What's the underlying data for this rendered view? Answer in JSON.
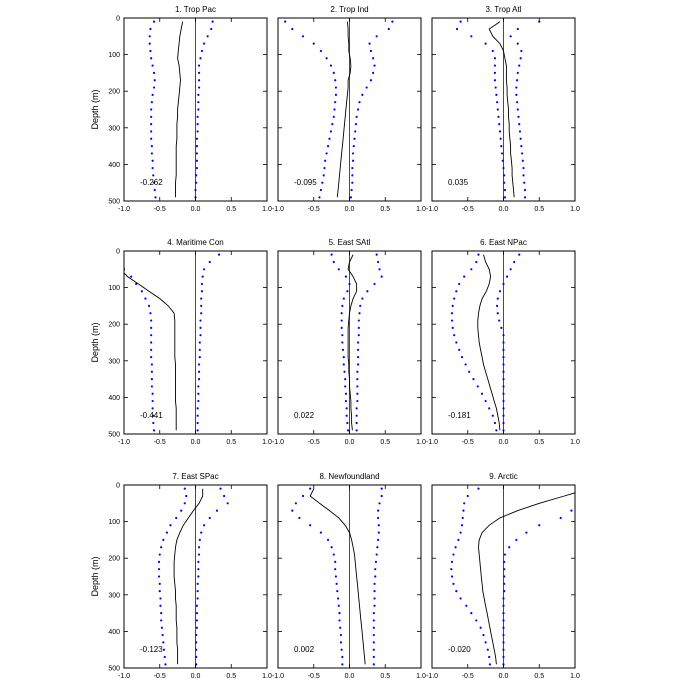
{
  "chart_data": {
    "type": "line",
    "ylabel": "Depth (m)",
    "xlim": [
      -1.0,
      1.0
    ],
    "ylim": [
      500,
      0
    ],
    "x_ticks": [
      "-1.0",
      "-0.5",
      "0.0",
      "0.5",
      "1.0"
    ],
    "y_ticks": [
      "0",
      "100",
      "200",
      "300",
      "400",
      "500"
    ],
    "depths": [
      10,
      30,
      50,
      70,
      90,
      110,
      130,
      150,
      170,
      190,
      210,
      230,
      250,
      270,
      290,
      310,
      330,
      350,
      370,
      390,
      410,
      430,
      450,
      470,
      490
    ],
    "reference_line": {
      "x": 0.0,
      "color": "#ff0000"
    },
    "colors": {
      "mean": "#000000",
      "bounds": "#0000ff"
    },
    "panels": [
      {
        "title": "1. Trop Pac",
        "value_label": "-0.262",
        "mean": [
          -0.18,
          -0.2,
          -0.22,
          -0.23,
          -0.24,
          -0.25,
          -0.23,
          -0.22,
          -0.21,
          -0.22,
          -0.23,
          -0.24,
          -0.25,
          -0.25,
          -0.26,
          -0.26,
          -0.26,
          -0.27,
          -0.27,
          -0.27,
          -0.27,
          -0.27,
          -0.28,
          -0.28,
          -0.28
        ],
        "lower": [
          -0.58,
          -0.63,
          -0.64,
          -0.64,
          -0.63,
          -0.62,
          -0.6,
          -0.58,
          -0.57,
          -0.58,
          -0.6,
          -0.61,
          -0.62,
          -0.62,
          -0.62,
          -0.62,
          -0.62,
          -0.61,
          -0.61,
          -0.6,
          -0.6,
          -0.59,
          -0.58,
          -0.57,
          -0.56
        ],
        "upper": [
          0.24,
          0.22,
          0.17,
          0.12,
          0.09,
          0.07,
          0.05,
          0.05,
          0.05,
          0.05,
          0.04,
          0.04,
          0.04,
          0.03,
          0.03,
          0.03,
          0.02,
          0.02,
          0.02,
          0.02,
          0.02,
          0.01,
          0.01,
          0.0,
          0.0
        ]
      },
      {
        "title": "2. Trop Ind",
        "value_label": "-0.095",
        "mean": [
          -0.03,
          -0.02,
          -0.02,
          -0.01,
          -0.01,
          0.01,
          0.02,
          0.01,
          -0.02,
          -0.02,
          -0.03,
          -0.04,
          -0.05,
          -0.06,
          -0.07,
          -0.08,
          -0.09,
          -0.1,
          -0.11,
          -0.12,
          -0.13,
          -0.14,
          -0.15,
          -0.16,
          -0.17
        ],
        "lower": [
          -0.9,
          -0.8,
          -0.65,
          -0.5,
          -0.4,
          -0.32,
          -0.26,
          -0.22,
          -0.2,
          -0.19,
          -0.19,
          -0.2,
          -0.21,
          -0.22,
          -0.24,
          -0.26,
          -0.28,
          -0.3,
          -0.32,
          -0.34,
          -0.35,
          -0.36,
          -0.38,
          -0.4,
          -0.42
        ],
        "upper": [
          0.6,
          0.55,
          0.38,
          0.28,
          0.3,
          0.33,
          0.35,
          0.33,
          0.3,
          0.24,
          0.18,
          0.14,
          0.12,
          0.1,
          0.09,
          0.08,
          0.07,
          0.06,
          0.05,
          0.05,
          0.04,
          0.04,
          0.04,
          0.03,
          0.02
        ]
      },
      {
        "title": "3. Trop Atl",
        "value_label": "0.035",
        "mean": [
          -0.05,
          -0.2,
          -0.15,
          -0.05,
          0.0,
          0.02,
          0.04,
          0.04,
          0.04,
          0.05,
          0.05,
          0.06,
          0.07,
          0.07,
          0.08,
          0.08,
          0.09,
          0.1,
          0.1,
          0.11,
          0.12,
          0.12,
          0.13,
          0.14,
          0.15
        ],
        "lower": [
          -0.6,
          -0.65,
          -0.45,
          -0.25,
          -0.15,
          -0.12,
          -0.12,
          -0.12,
          -0.12,
          -0.11,
          -0.1,
          -0.09,
          -0.08,
          -0.07,
          -0.06,
          -0.05,
          -0.04,
          -0.03,
          -0.02,
          -0.01,
          0.0,
          0.01,
          0.01,
          0.02,
          0.02
        ],
        "upper": [
          0.5,
          0.2,
          0.1,
          0.2,
          0.25,
          0.24,
          0.22,
          0.2,
          0.19,
          0.18,
          0.18,
          0.19,
          0.2,
          0.21,
          0.22,
          0.23,
          0.24,
          0.25,
          0.26,
          0.27,
          0.28,
          0.28,
          0.29,
          0.3,
          0.3
        ]
      },
      {
        "title": "4. Maritime Con",
        "value_label": "-0.441",
        "mean": [
          -1.2,
          -1.15,
          -1.05,
          -0.95,
          -0.8,
          -0.65,
          -0.5,
          -0.38,
          -0.3,
          -0.29,
          -0.29,
          -0.29,
          -0.29,
          -0.29,
          -0.29,
          -0.28,
          -0.28,
          -0.28,
          -0.28,
          -0.28,
          -0.28,
          -0.27,
          -0.27,
          -0.27,
          -0.27
        ],
        "lower": [
          -1.3,
          -1.2,
          -1.0,
          -0.9,
          -0.83,
          -0.75,
          -0.7,
          -0.65,
          -0.63,
          -0.62,
          -0.62,
          -0.62,
          -0.62,
          -0.62,
          -0.62,
          -0.61,
          -0.61,
          -0.61,
          -0.61,
          -0.6,
          -0.6,
          -0.6,
          -0.59,
          -0.59,
          -0.58
        ],
        "upper": [
          0.33,
          0.2,
          0.12,
          0.1,
          0.09,
          0.09,
          0.08,
          0.08,
          0.08,
          0.07,
          0.07,
          0.07,
          0.06,
          0.06,
          0.06,
          0.05,
          0.05,
          0.05,
          0.04,
          0.04,
          0.04,
          0.03,
          0.03,
          0.03,
          0.03
        ]
      },
      {
        "title": "5. East SAtl",
        "value_label": "0.022",
        "mean": [
          0.05,
          0.0,
          -0.02,
          0.05,
          0.1,
          0.1,
          0.05,
          0.02,
          0.0,
          -0.01,
          -0.02,
          -0.02,
          -0.02,
          -0.02,
          -0.02,
          -0.01,
          -0.01,
          0.0,
          0.0,
          0.01,
          0.02,
          0.02,
          0.03,
          0.03,
          0.04
        ],
        "lower": [
          -0.25,
          -0.22,
          -0.15,
          -0.05,
          0.0,
          -0.03,
          -0.08,
          -0.1,
          -0.11,
          -0.11,
          -0.11,
          -0.1,
          -0.1,
          -0.09,
          -0.08,
          -0.08,
          -0.07,
          -0.06,
          -0.06,
          -0.05,
          -0.05,
          -0.04,
          -0.04,
          -0.03,
          -0.02
        ],
        "upper": [
          0.38,
          0.4,
          0.42,
          0.45,
          0.35,
          0.25,
          0.18,
          0.15,
          0.14,
          0.13,
          0.13,
          0.13,
          0.12,
          0.12,
          0.12,
          0.12,
          0.11,
          0.11,
          0.11,
          0.11,
          0.11,
          0.1,
          0.1,
          0.1,
          0.1
        ]
      },
      {
        "title": "6. East NPac",
        "value_label": "-0.181",
        "mean": [
          -0.28,
          -0.25,
          -0.2,
          -0.18,
          -0.2,
          -0.24,
          -0.3,
          -0.33,
          -0.35,
          -0.36,
          -0.36,
          -0.35,
          -0.34,
          -0.32,
          -0.3,
          -0.28,
          -0.25,
          -0.22,
          -0.19,
          -0.16,
          -0.13,
          -0.1,
          -0.08,
          -0.06,
          -0.05
        ],
        "lower": [
          -0.35,
          -0.38,
          -0.45,
          -0.55,
          -0.62,
          -0.66,
          -0.69,
          -0.71,
          -0.72,
          -0.72,
          -0.71,
          -0.69,
          -0.66,
          -0.62,
          -0.58,
          -0.53,
          -0.48,
          -0.42,
          -0.36,
          -0.3,
          -0.25,
          -0.2,
          -0.15,
          -0.12,
          -0.1
        ],
        "upper": [
          0.22,
          0.15,
          0.1,
          0.05,
          0.0,
          -0.05,
          -0.08,
          -0.09,
          -0.08,
          -0.06,
          -0.03,
          0.0,
          0.0,
          0.0,
          0.0,
          0.0,
          0.0,
          0.0,
          0.0,
          0.0,
          0.0,
          0.0,
          0.0,
          0.0,
          0.0
        ]
      },
      {
        "title": "7. East SPac",
        "value_label": "-0.123",
        "mean": [
          0.1,
          0.1,
          0.05,
          -0.03,
          -0.1,
          -0.17,
          -0.22,
          -0.26,
          -0.28,
          -0.29,
          -0.3,
          -0.3,
          -0.3,
          -0.29,
          -0.28,
          -0.28,
          -0.27,
          -0.27,
          -0.27,
          -0.26,
          -0.26,
          -0.26,
          -0.25,
          -0.25,
          -0.25
        ],
        "lower": [
          -0.15,
          -0.13,
          -0.15,
          -0.2,
          -0.27,
          -0.35,
          -0.4,
          -0.45,
          -0.48,
          -0.5,
          -0.51,
          -0.51,
          -0.51,
          -0.5,
          -0.5,
          -0.49,
          -0.49,
          -0.48,
          -0.48,
          -0.47,
          -0.46,
          -0.45,
          -0.44,
          -0.43,
          -0.42
        ],
        "upper": [
          0.35,
          0.4,
          0.45,
          0.3,
          0.2,
          0.12,
          0.08,
          0.06,
          0.05,
          0.05,
          0.04,
          0.04,
          0.04,
          0.03,
          0.03,
          0.03,
          0.02,
          0.02,
          0.02,
          0.02,
          0.01,
          0.01,
          0.01,
          0.01,
          0.01
        ]
      },
      {
        "title": "8. Newfoundland",
        "value_label": "0.002",
        "mean": [
          -0.5,
          -0.55,
          -0.42,
          -0.28,
          -0.15,
          -0.06,
          0.0,
          0.03,
          0.05,
          0.07,
          0.08,
          0.09,
          0.1,
          0.11,
          0.12,
          0.13,
          0.14,
          0.15,
          0.16,
          0.17,
          0.18,
          0.19,
          0.2,
          0.21,
          0.22
        ],
        "lower": [
          -0.55,
          -0.65,
          -0.75,
          -0.8,
          -0.7,
          -0.55,
          -0.4,
          -0.3,
          -0.25,
          -0.22,
          -0.2,
          -0.2,
          -0.19,
          -0.18,
          -0.17,
          -0.16,
          -0.15,
          -0.14,
          -0.14,
          -0.13,
          -0.12,
          -0.12,
          -0.11,
          -0.1,
          -0.1
        ],
        "upper": [
          0.45,
          0.45,
          0.42,
          0.4,
          0.4,
          0.41,
          0.41,
          0.4,
          0.39,
          0.38,
          0.37,
          0.36,
          0.36,
          0.35,
          0.35,
          0.35,
          0.35,
          0.34,
          0.34,
          0.34,
          0.34,
          0.34,
          0.34,
          0.34,
          0.34
        ]
      },
      {
        "title": "9. Arctic",
        "value_label": "-0.020",
        "mean": [
          1.2,
          0.85,
          0.5,
          0.2,
          -0.05,
          -0.2,
          -0.3,
          -0.34,
          -0.35,
          -0.34,
          -0.33,
          -0.32,
          -0.31,
          -0.3,
          -0.29,
          -0.27,
          -0.25,
          -0.23,
          -0.21,
          -0.19,
          -0.17,
          -0.15,
          -0.13,
          -0.11,
          -0.1
        ],
        "lower": [
          -0.35,
          -0.5,
          -0.55,
          -0.56,
          -0.57,
          -0.58,
          -0.6,
          -0.63,
          -0.67,
          -0.7,
          -0.72,
          -0.73,
          -0.72,
          -0.7,
          -0.66,
          -0.6,
          -0.52,
          -0.45,
          -0.38,
          -0.32,
          -0.28,
          -0.25,
          -0.22,
          -0.2,
          -0.19
        ],
        "upper": [
          1.4,
          1.2,
          1.05,
          0.95,
          0.8,
          0.5,
          0.32,
          0.18,
          0.08,
          0.02,
          0.01,
          0.01,
          0.01,
          0.01,
          0.01,
          0.0,
          0.0,
          0.0,
          0.0,
          0.0,
          0.0,
          0.0,
          0.0,
          0.0,
          0.0
        ]
      }
    ]
  }
}
